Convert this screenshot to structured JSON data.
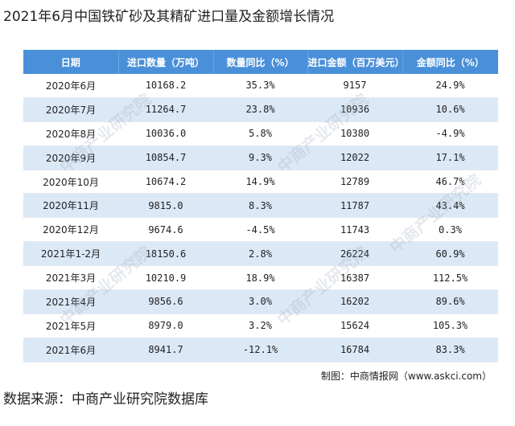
{
  "title": "2021年6月中国铁矿砂及其精矿进口量及金额增长情况",
  "table": {
    "headers": [
      "日期",
      "进口数量（万吨）",
      "数量同比（%）",
      "进口金额（百万美元）",
      "金额同比（%）"
    ],
    "rows": [
      [
        "2020年6月",
        "10168.2",
        "35.3%",
        "9157",
        "24.9%"
      ],
      [
        "2020年7月",
        "11264.7",
        "23.8%",
        "10936",
        "10.6%"
      ],
      [
        "2020年8月",
        "10036.0",
        "5.8%",
        "10380",
        "-4.9%"
      ],
      [
        "2020年9月",
        "10854.7",
        "9.3%",
        "12022",
        "17.1%"
      ],
      [
        "2020年10月",
        "10674.2",
        "14.9%",
        "12789",
        "46.7%"
      ],
      [
        "2020年11月",
        "9815.0",
        "8.3%",
        "11787",
        "43.4%"
      ],
      [
        "2020年12月",
        "9674.6",
        "-4.5%",
        "11743",
        "0.3%"
      ],
      [
        "2021年1-2月",
        "18150.6",
        "2.8%",
        "26224",
        "60.9%"
      ],
      [
        "2021年3月",
        "10210.9",
        "18.9%",
        "16387",
        "112.5%"
      ],
      [
        "2021年4月",
        "9856.6",
        "3.0%",
        "16202",
        "89.6%"
      ],
      [
        "2021年5月",
        "8979.0",
        "3.2%",
        "15624",
        "105.3%"
      ],
      [
        "2021年6月",
        "8941.7",
        "-12.1%",
        "16784",
        "83.3%"
      ]
    ]
  },
  "credit": "制图：中商情报网（www.askci.com）",
  "source": "数据来源：中商产业研究院数据库",
  "watermark": "中商产业研究院",
  "colors": {
    "header_bg": "#4a90d9",
    "alt_row": "#dbe8f6"
  }
}
